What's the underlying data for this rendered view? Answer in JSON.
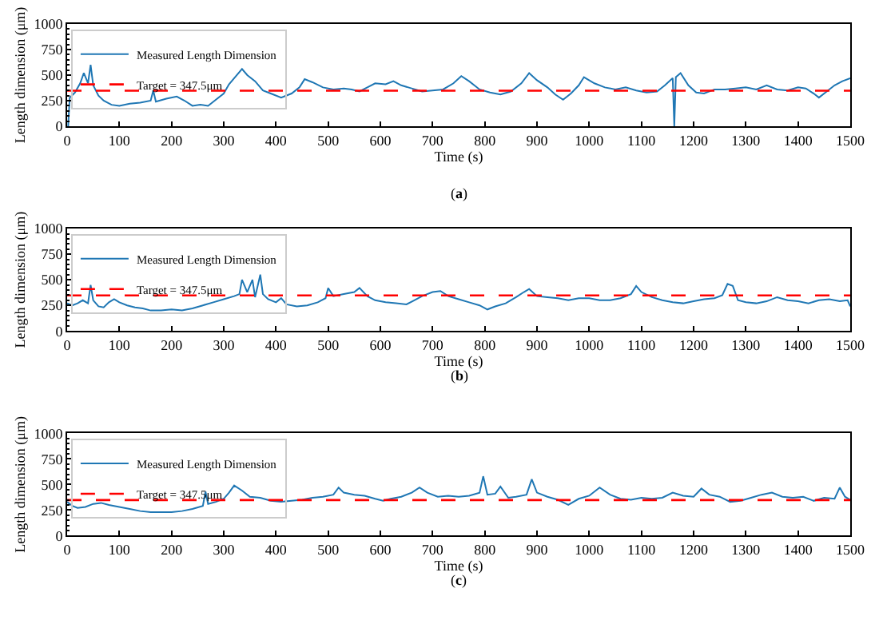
{
  "chart_data": [
    {
      "type": "line",
      "title": "(a)",
      "xlabel": "Time (s)",
      "ylabel": "Length dimension (μm)",
      "legend": "top left",
      "line_style": "solid",
      "marker": "none",
      "xlim": [
        0,
        1500
      ],
      "ylim": [
        0,
        1000
      ],
      "xticks": [
        0,
        100,
        200,
        300,
        400,
        500,
        600,
        700,
        800,
        900,
        1000,
        1100,
        1200,
        1300,
        1400,
        1500
      ],
      "yticks": [
        0,
        250,
        500,
        750,
        1000
      ],
      "series": [
        {
          "name": "Measured Length Dimension",
          "color": "#1f77b4",
          "x": [
            2,
            5,
            15,
            25,
            32,
            40,
            45,
            50,
            60,
            70,
            85,
            100,
            120,
            140,
            160,
            165,
            170,
            190,
            210,
            225,
            240,
            255,
            270,
            285,
            300,
            310,
            320,
            335,
            345,
            360,
            375,
            390,
            410,
            430,
            445,
            455,
            470,
            490,
            510,
            530,
            545,
            560,
            575,
            590,
            610,
            625,
            640,
            660,
            680,
            700,
            720,
            740,
            755,
            770,
            790,
            810,
            830,
            850,
            870,
            885,
            900,
            920,
            935,
            950,
            965,
            980,
            990,
            1010,
            1030,
            1050,
            1070,
            1090,
            1110,
            1130,
            1145,
            1160,
            1163,
            1166,
            1175,
            1190,
            1205,
            1220,
            1240,
            1260,
            1280,
            1300,
            1320,
            1340,
            1360,
            1380,
            1400,
            1415,
            1430,
            1440,
            1455,
            1470,
            1485,
            1500
          ],
          "values": [
            0,
            280,
            330,
            420,
            520,
            420,
            600,
            400,
            300,
            250,
            210,
            200,
            220,
            230,
            250,
            350,
            240,
            270,
            290,
            250,
            200,
            210,
            200,
            260,
            320,
            410,
            470,
            560,
            500,
            440,
            350,
            320,
            280,
            320,
            380,
            460,
            430,
            380,
            360,
            370,
            360,
            340,
            380,
            420,
            410,
            440,
            400,
            370,
            340,
            350,
            360,
            420,
            490,
            440,
            360,
            330,
            310,
            340,
            420,
            520,
            450,
            380,
            310,
            260,
            320,
            400,
            480,
            420,
            380,
            360,
            380,
            350,
            330,
            340,
            400,
            470,
            0,
            480,
            520,
            400,
            330,
            320,
            360,
            360,
            370,
            380,
            360,
            400,
            360,
            350,
            380,
            370,
            320,
            280,
            340,
            400,
            440,
            470
          ]
        }
      ],
      "ref_lines": [
        {
          "axis": "y",
          "value": 347.5,
          "label": "Target = 347.5μm",
          "color": "#ff0000",
          "line_style": "dashed"
        }
      ]
    },
    {
      "type": "line",
      "title": "(b)",
      "xlabel": "Time (s)",
      "ylabel": "Length dimension (μm)",
      "legend": "top left",
      "line_style": "solid",
      "marker": "none",
      "xlim": [
        0,
        1500
      ],
      "ylim": [
        0,
        1000
      ],
      "xticks": [
        0,
        100,
        200,
        300,
        400,
        500,
        600,
        700,
        800,
        900,
        1000,
        1100,
        1200,
        1300,
        1400,
        1500
      ],
      "yticks": [
        0,
        250,
        500,
        750,
        1000
      ],
      "series": [
        {
          "name": "Measured Length Dimension",
          "color": "#1f77b4",
          "x": [
            0,
            10,
            20,
            30,
            40,
            45,
            50,
            60,
            70,
            80,
            90,
            100,
            115,
            130,
            145,
            160,
            180,
            200,
            220,
            240,
            260,
            280,
            300,
            320,
            330,
            335,
            345,
            355,
            360,
            370,
            375,
            385,
            400,
            410,
            420,
            440,
            460,
            480,
            495,
            500,
            510,
            530,
            550,
            560,
            575,
            590,
            610,
            630,
            650,
            665,
            680,
            700,
            715,
            730,
            750,
            770,
            790,
            805,
            820,
            840,
            860,
            875,
            885,
            900,
            920,
            940,
            960,
            980,
            1000,
            1020,
            1040,
            1060,
            1080,
            1090,
            1100,
            1120,
            1140,
            1160,
            1180,
            1200,
            1220,
            1240,
            1255,
            1265,
            1275,
            1285,
            1300,
            1320,
            1340,
            1360,
            1380,
            1400,
            1420,
            1440,
            1460,
            1480,
            1495,
            1500
          ],
          "values": [
            270,
            250,
            270,
            300,
            270,
            450,
            300,
            240,
            230,
            280,
            310,
            280,
            250,
            230,
            220,
            200,
            200,
            210,
            200,
            220,
            250,
            280,
            310,
            340,
            360,
            500,
            380,
            500,
            330,
            550,
            360,
            310,
            280,
            320,
            260,
            240,
            250,
            280,
            320,
            420,
            340,
            360,
            380,
            420,
            340,
            300,
            280,
            270,
            260,
            300,
            340,
            380,
            390,
            340,
            310,
            280,
            250,
            210,
            240,
            270,
            330,
            380,
            410,
            340,
            330,
            320,
            300,
            320,
            320,
            300,
            300,
            320,
            360,
            440,
            380,
            330,
            300,
            280,
            270,
            290,
            310,
            320,
            350,
            460,
            440,
            300,
            280,
            270,
            290,
            330,
            300,
            290,
            270,
            300,
            310,
            290,
            300,
            240
          ]
        }
      ],
      "ref_lines": [
        {
          "axis": "y",
          "value": 347.5,
          "label": "Target = 347.5μm",
          "color": "#ff0000",
          "line_style": "dashed"
        }
      ]
    },
    {
      "type": "line",
      "title": "(c)",
      "xlabel": "Time (s)",
      "ylabel": "Length dimension (μm)",
      "legend": "top left",
      "line_style": "solid",
      "marker": "none",
      "xlim": [
        0,
        1500
      ],
      "ylim": [
        0,
        1000
      ],
      "xticks": [
        0,
        100,
        200,
        300,
        400,
        500,
        600,
        700,
        800,
        900,
        1000,
        1100,
        1200,
        1300,
        1400,
        1500
      ],
      "yticks": [
        0,
        250,
        500,
        750,
        1000
      ],
      "series": [
        {
          "name": "Measured Length Dimension",
          "color": "#1f77b4",
          "x": [
            0,
            10,
            20,
            35,
            50,
            65,
            80,
            100,
            120,
            140,
            160,
            180,
            200,
            220,
            240,
            260,
            265,
            270,
            285,
            300,
            310,
            320,
            335,
            350,
            370,
            390,
            410,
            430,
            450,
            470,
            490,
            510,
            520,
            530,
            550,
            570,
            590,
            605,
            620,
            640,
            660,
            675,
            690,
            710,
            730,
            750,
            770,
            790,
            797,
            805,
            820,
            830,
            845,
            860,
            880,
            890,
            900,
            920,
            940,
            960,
            980,
            1000,
            1020,
            1040,
            1060,
            1080,
            1100,
            1120,
            1140,
            1160,
            1180,
            1200,
            1215,
            1230,
            1250,
            1270,
            1290,
            1310,
            1330,
            1350,
            1370,
            1390,
            1410,
            1430,
            1450,
            1470,
            1480,
            1490,
            1500
          ],
          "values": [
            330,
            290,
            270,
            280,
            310,
            320,
            300,
            280,
            260,
            240,
            230,
            230,
            230,
            240,
            260,
            290,
            430,
            310,
            330,
            360,
            420,
            490,
            440,
            380,
            370,
            340,
            330,
            340,
            350,
            370,
            380,
            400,
            470,
            420,
            400,
            390,
            360,
            340,
            360,
            380,
            420,
            470,
            420,
            380,
            390,
            380,
            390,
            420,
            580,
            400,
            410,
            480,
            370,
            380,
            400,
            550,
            420,
            380,
            350,
            300,
            360,
            390,
            470,
            400,
            360,
            350,
            370,
            360,
            370,
            420,
            390,
            380,
            460,
            400,
            380,
            330,
            340,
            370,
            400,
            420,
            380,
            370,
            380,
            340,
            370,
            360,
            470,
            380,
            350
          ]
        }
      ],
      "ref_lines": [
        {
          "axis": "y",
          "value": 347.5,
          "label": "Target = 347.5μm",
          "color": "#ff0000",
          "line_style": "dashed"
        }
      ]
    }
  ]
}
